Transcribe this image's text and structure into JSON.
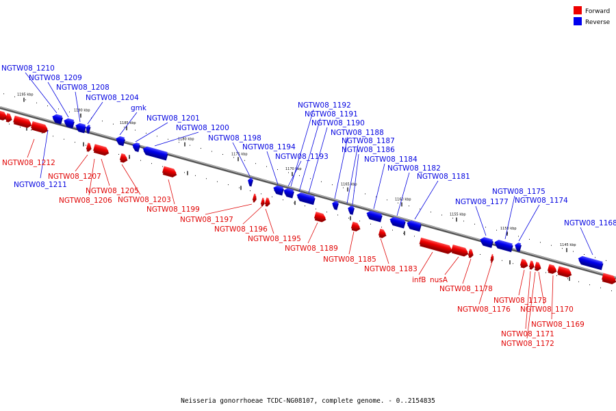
{
  "colors": {
    "forward": "#ee0000",
    "forward_dark": "#990000",
    "forward_label": "#e00000",
    "reverse": "#0000ee",
    "reverse_dark": "#000099",
    "reverse_label": "#0000e0",
    "backbone": "#777777"
  },
  "legend": [
    {
      "label": "Forward",
      "color": "#ee0000"
    },
    {
      "label": "Reverse",
      "color": "#0000ee"
    }
  ],
  "caption": "Neisseria gonorrhoeae TCDC-NG08107, complete genome. - 0..2154835",
  "scale_ticks": [
    "1195 kbp",
    "1190 kbp",
    "1185 kbp",
    "1180 kbp",
    "1175 kbp",
    "1170 kbp",
    "1165 kbp",
    "1160 kbp",
    "1155 kbp",
    "1150 kbp",
    "1145 kbp"
  ],
  "forward_genes": [
    "NGTW08_1212",
    "NGTW08_1207",
    "NGTW08_1206",
    "NGTW08_1205",
    "NGTW08_1203",
    "NGTW08_1199",
    "NGTW08_1197",
    "NGTW08_1196",
    "NGTW08_1195",
    "NGTW08_1189",
    "NGTW08_1185",
    "NGTW08_1183",
    "infB",
    "nusA",
    "NGTW08_1178",
    "NGTW08_1176",
    "NGTW08_1173",
    "NGTW08_1170",
    "NGTW08_1169",
    "NGTW08_1171",
    "NGTW08_1172"
  ],
  "reverse_genes": [
    "NGTW08_1210",
    "NGTW08_1209",
    "NGTW08_1208",
    "NGTW08_1204",
    "gmk",
    "NGTW08_1201",
    "NGTW08_1200",
    "NGTW08_1198",
    "NGTW08_1194",
    "NGTW08_1193",
    "NGTW08_1192",
    "NGTW08_1191",
    "NGTW08_1190",
    "NGTW08_1188",
    "NGTW08_1187",
    "NGTW08_1186",
    "NGTW08_1184",
    "NGTW08_1182",
    "NGTW08_1181",
    "NGTW08_1177",
    "NGTW08_1175",
    "NGTW08_1174",
    "NGTW08_1168",
    "NGTW08_1211"
  ]
}
